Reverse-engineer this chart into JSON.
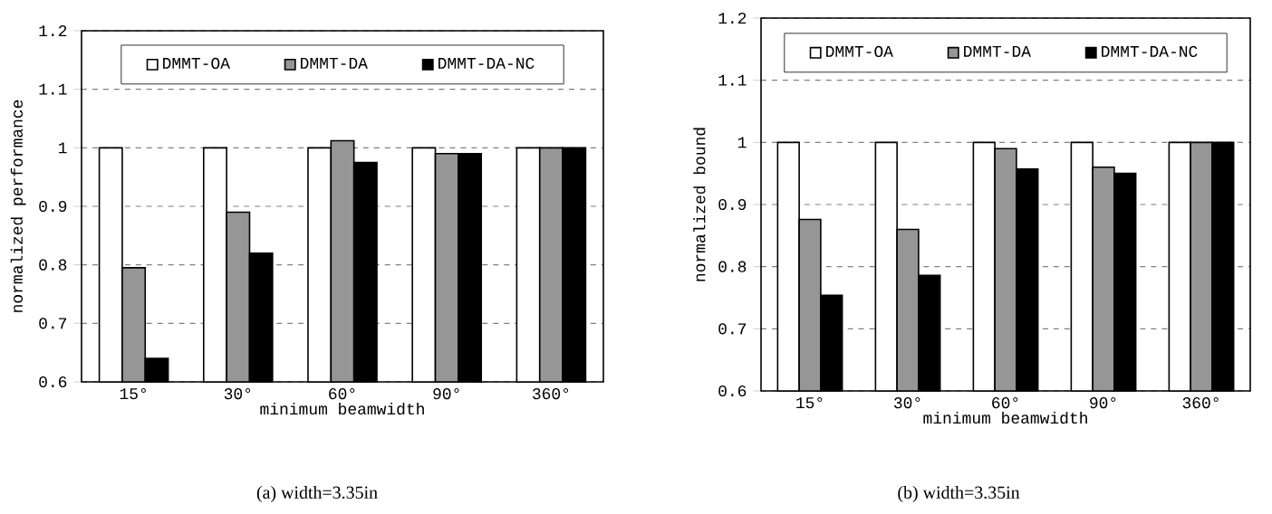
{
  "chart_data": [
    {
      "type": "bar",
      "categories": [
        "15°",
        "30°",
        "60°",
        "90°",
        "360°"
      ],
      "series": [
        {
          "name": "DMMT-OA",
          "color": "#ffffff",
          "values": [
            1,
            1,
            1,
            1,
            1
          ]
        },
        {
          "name": "DMMT-DA",
          "color": "#969696",
          "values": [
            0.795,
            0.89,
            1.012,
            0.99,
            1.0
          ]
        },
        {
          "name": "DMMT-DA-NC",
          "color": "#000000",
          "values": [
            0.64,
            0.82,
            0.975,
            0.99,
            1.0
          ]
        }
      ],
      "xlabel": "minimum beamwidth",
      "ylabel": "normalized performance",
      "ylim": [
        0.6,
        1.2
      ],
      "yticks": [
        0.6,
        0.7,
        0.8,
        0.9,
        1,
        1.1,
        1.2
      ],
      "grid": "y",
      "legend": "top",
      "annotations": [
        "(a)  width=3.35in"
      ]
    },
    {
      "type": "bar",
      "categories": [
        "15°",
        "30°",
        "60°",
        "90°",
        "360°"
      ],
      "series": [
        {
          "name": "DMMT-OA",
          "color": "#ffffff",
          "values": [
            1,
            1,
            1,
            1,
            1
          ]
        },
        {
          "name": "DMMT-DA",
          "color": "#969696",
          "values": [
            0.876,
            0.86,
            0.99,
            0.96,
            1.0
          ]
        },
        {
          "name": "DMMT-DA-NC",
          "color": "#000000",
          "values": [
            0.754,
            0.786,
            0.957,
            0.95,
            1.0
          ]
        }
      ],
      "xlabel": "minimum beamwidth",
      "ylabel": "normalized bound",
      "ylim": [
        0.6,
        1.2
      ],
      "yticks": [
        0.6,
        0.7,
        0.8,
        0.9,
        1,
        1.1,
        1.2
      ],
      "grid": "y",
      "legend": "top",
      "annotations": [
        "(b)  width=3.35in"
      ]
    }
  ]
}
